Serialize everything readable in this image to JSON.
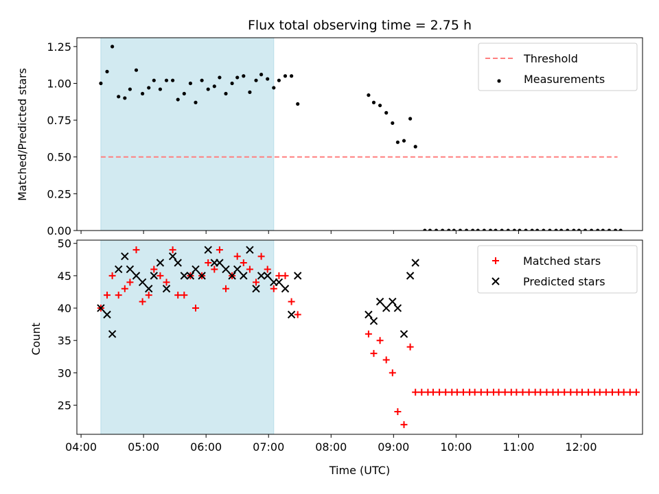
{
  "chart_data": [
    {
      "type": "scatter",
      "title": "Flux total observing time = 2.75 h",
      "ylabel": "Matched/Predicted stars",
      "xlabel": "",
      "ylim": [
        0,
        1.31
      ],
      "xlim": [
        "03:56",
        "12:59"
      ],
      "yticks": [
        0.0,
        0.25,
        0.5,
        0.75,
        1.0,
        1.25
      ],
      "yticklabels": [
        "0.00",
        "0.25",
        "0.50",
        "0.75",
        "1.00",
        "1.25"
      ],
      "shaded_span": [
        "04:19",
        "07:05"
      ],
      "threshold": {
        "name": "Threshold",
        "y": 0.5,
        "x_range": [
          "04:19",
          "12:35"
        ],
        "color": "#ff7f7f"
      },
      "legend": {
        "position": "top-right",
        "entries": [
          "Threshold",
          "Measurements"
        ]
      },
      "series": [
        {
          "name": "Measurements",
          "color": "#000000",
          "points": [
            [
              "04:19",
              1.0
            ],
            [
              "04:25",
              1.08
            ],
            [
              "04:30",
              1.25
            ],
            [
              "04:36",
              0.91
            ],
            [
              "04:42",
              0.9
            ],
            [
              "04:47",
              0.96
            ],
            [
              "04:53",
              1.09
            ],
            [
              "04:59",
              0.93
            ],
            [
              "05:05",
              0.97
            ],
            [
              "05:10",
              1.02
            ],
            [
              "05:16",
              0.96
            ],
            [
              "05:22",
              1.02
            ],
            [
              "05:28",
              1.02
            ],
            [
              "05:33",
              0.89
            ],
            [
              "05:39",
              0.93
            ],
            [
              "05:45",
              1.0
            ],
            [
              "05:50",
              0.87
            ],
            [
              "05:56",
              1.02
            ],
            [
              "06:02",
              0.96
            ],
            [
              "06:08",
              0.98
            ],
            [
              "06:13",
              1.04
            ],
            [
              "06:19",
              0.93
            ],
            [
              "06:25",
              1.0
            ],
            [
              "06:30",
              1.04
            ],
            [
              "06:36",
              1.05
            ],
            [
              "06:42",
              0.94
            ],
            [
              "06:48",
              1.02
            ],
            [
              "06:53",
              1.06
            ],
            [
              "06:59",
              1.03
            ],
            [
              "07:05",
              0.97
            ],
            [
              "07:10",
              1.02
            ],
            [
              "07:16",
              1.05
            ],
            [
              "07:22",
              1.05
            ],
            [
              "07:28",
              0.86
            ],
            [
              "08:36",
              0.92
            ],
            [
              "08:41",
              0.87
            ],
            [
              "08:47",
              0.85
            ],
            [
              "08:53",
              0.8
            ],
            [
              "08:59",
              0.73
            ],
            [
              "09:04",
              0.6
            ],
            [
              "09:10",
              0.61
            ],
            [
              "09:16",
              0.76
            ],
            [
              "09:21",
              0.57
            ],
            [
              "09:30",
              0
            ],
            [
              "09:35",
              0
            ],
            [
              "09:41",
              0
            ],
            [
              "09:47",
              0
            ],
            [
              "09:53",
              0
            ],
            [
              "09:58",
              0
            ],
            [
              "10:04",
              0
            ],
            [
              "10:10",
              0
            ],
            [
              "10:16",
              0
            ],
            [
              "10:21",
              0
            ],
            [
              "10:27",
              0
            ],
            [
              "10:33",
              0
            ],
            [
              "10:38",
              0
            ],
            [
              "10:44",
              0
            ],
            [
              "10:50",
              0
            ],
            [
              "10:56",
              0
            ],
            [
              "11:01",
              0
            ],
            [
              "11:07",
              0
            ],
            [
              "11:13",
              0
            ],
            [
              "11:18",
              0
            ],
            [
              "11:24",
              0
            ],
            [
              "11:30",
              0
            ],
            [
              "11:36",
              0
            ],
            [
              "11:41",
              0
            ],
            [
              "11:47",
              0
            ],
            [
              "11:53",
              0
            ],
            [
              "11:58",
              0
            ],
            [
              "12:04",
              0
            ],
            [
              "12:10",
              0
            ],
            [
              "12:16",
              0
            ],
            [
              "12:21",
              0
            ],
            [
              "12:27",
              0
            ],
            [
              "12:33",
              0
            ],
            [
              "12:38",
              0
            ]
          ]
        }
      ]
    },
    {
      "type": "scatter",
      "title": "",
      "xlabel": "Time (UTC)",
      "ylabel": "Count",
      "ylim": [
        20.5,
        50.5
      ],
      "xlim": [
        "03:56",
        "12:59"
      ],
      "yticks": [
        25,
        30,
        35,
        40,
        45,
        50
      ],
      "yticklabels": [
        "25",
        "30",
        "35",
        "40",
        "45",
        "50"
      ],
      "xticks": [
        "04:00",
        "05:00",
        "06:00",
        "07:00",
        "08:00",
        "09:00",
        "10:00",
        "11:00",
        "12:00"
      ],
      "shaded_span": [
        "04:19",
        "07:05"
      ],
      "legend": {
        "position": "top-right",
        "entries": [
          "Matched stars",
          "Predicted stars"
        ]
      },
      "series": [
        {
          "name": "Matched stars",
          "marker": "plus",
          "color": "#ff0000",
          "points": [
            [
              "04:19",
              40
            ],
            [
              "04:25",
              42
            ],
            [
              "04:30",
              45
            ],
            [
              "04:36",
              42
            ],
            [
              "04:42",
              43
            ],
            [
              "04:47",
              44
            ],
            [
              "04:53",
              49
            ],
            [
              "04:59",
              41
            ],
            [
              "05:05",
              42
            ],
            [
              "05:10",
              46
            ],
            [
              "05:16",
              45
            ],
            [
              "05:22",
              44
            ],
            [
              "05:28",
              49
            ],
            [
              "05:33",
              42
            ],
            [
              "05:39",
              42
            ],
            [
              "05:45",
              45
            ],
            [
              "05:50",
              40
            ],
            [
              "05:56",
              45
            ],
            [
              "06:02",
              47
            ],
            [
              "06:08",
              46
            ],
            [
              "06:13",
              49
            ],
            [
              "06:19",
              43
            ],
            [
              "06:25",
              45
            ],
            [
              "06:30",
              48
            ],
            [
              "06:36",
              47
            ],
            [
              "06:42",
              46
            ],
            [
              "06:48",
              44
            ],
            [
              "06:53",
              48
            ],
            [
              "06:59",
              46
            ],
            [
              "07:05",
              43
            ],
            [
              "07:10",
              45
            ],
            [
              "07:16",
              45
            ],
            [
              "07:22",
              41
            ],
            [
              "07:28",
              39
            ],
            [
              "08:36",
              36
            ],
            [
              "08:41",
              33
            ],
            [
              "08:47",
              35
            ],
            [
              "08:53",
              32
            ],
            [
              "08:59",
              30
            ],
            [
              "09:04",
              24
            ],
            [
              "09:10",
              22
            ],
            [
              "09:16",
              34
            ],
            [
              "09:21",
              27
            ],
            [
              "09:27",
              27
            ],
            [
              "09:33",
              27
            ],
            [
              "09:38",
              27
            ],
            [
              "09:44",
              27
            ],
            [
              "09:50",
              27
            ],
            [
              "09:56",
              27
            ],
            [
              "10:01",
              27
            ],
            [
              "10:07",
              27
            ],
            [
              "10:13",
              27
            ],
            [
              "10:18",
              27
            ],
            [
              "10:24",
              27
            ],
            [
              "10:30",
              27
            ],
            [
              "10:36",
              27
            ],
            [
              "10:41",
              27
            ],
            [
              "10:47",
              27
            ],
            [
              "10:53",
              27
            ],
            [
              "10:58",
              27
            ],
            [
              "11:04",
              27
            ],
            [
              "11:10",
              27
            ],
            [
              "11:16",
              27
            ],
            [
              "11:21",
              27
            ],
            [
              "11:27",
              27
            ],
            [
              "11:33",
              27
            ],
            [
              "11:38",
              27
            ],
            [
              "11:44",
              27
            ],
            [
              "11:50",
              27
            ],
            [
              "11:56",
              27
            ],
            [
              "12:01",
              27
            ],
            [
              "12:07",
              27
            ],
            [
              "12:13",
              27
            ],
            [
              "12:18",
              27
            ],
            [
              "12:24",
              27
            ],
            [
              "12:30",
              27
            ],
            [
              "12:36",
              27
            ],
            [
              "12:41",
              27
            ],
            [
              "12:47",
              27
            ],
            [
              "12:53",
              27
            ]
          ]
        },
        {
          "name": "Predicted stars",
          "marker": "x",
          "color": "#000000",
          "points": [
            [
              "04:19",
              40
            ],
            [
              "04:25",
              39
            ],
            [
              "04:30",
              36
            ],
            [
              "04:36",
              46
            ],
            [
              "04:42",
              48
            ],
            [
              "04:47",
              46
            ],
            [
              "04:53",
              45
            ],
            [
              "04:59",
              44
            ],
            [
              "05:05",
              43
            ],
            [
              "05:10",
              45
            ],
            [
              "05:16",
              47
            ],
            [
              "05:22",
              43
            ],
            [
              "05:28",
              48
            ],
            [
              "05:33",
              47
            ],
            [
              "05:39",
              45
            ],
            [
              "05:45",
              45
            ],
            [
              "05:50",
              46
            ],
            [
              "05:56",
              45
            ],
            [
              "06:02",
              49
            ],
            [
              "06:08",
              47
            ],
            [
              "06:13",
              47
            ],
            [
              "06:19",
              46
            ],
            [
              "06:25",
              45
            ],
            [
              "06:30",
              46
            ],
            [
              "06:36",
              45
            ],
            [
              "06:42",
              49
            ],
            [
              "06:48",
              43
            ],
            [
              "06:53",
              45
            ],
            [
              "06:59",
              45
            ],
            [
              "07:05",
              44
            ],
            [
              "07:10",
              44
            ],
            [
              "07:16",
              43
            ],
            [
              "07:22",
              39
            ],
            [
              "07:28",
              45
            ],
            [
              "08:36",
              39
            ],
            [
              "08:41",
              38
            ],
            [
              "08:47",
              41
            ],
            [
              "08:53",
              40
            ],
            [
              "08:59",
              41
            ],
            [
              "09:04",
              40
            ],
            [
              "09:10",
              36
            ],
            [
              "09:16",
              45
            ],
            [
              "09:21",
              47
            ]
          ]
        }
      ]
    }
  ]
}
